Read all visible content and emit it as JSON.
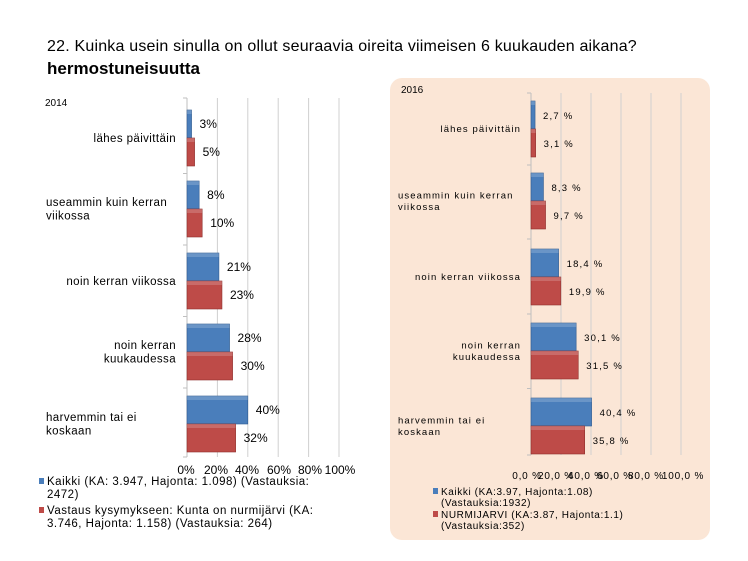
{
  "title": "22. Kuinka usein sinulla on ollut seuraavia oireita viimeisen 6 kuukauden aikana?",
  "subtitle": "hermostuneisuutta",
  "colors": {
    "series1": "#4a7ebb",
    "series2": "#be4b48",
    "panel": "#fbe6d6",
    "grid": "#d0d0d0"
  },
  "chart_data": [
    {
      "type": "bar",
      "orientation": "horizontal",
      "title": "2014",
      "categories": [
        "lähes päivittäin",
        "useammin kuin kerran viikossa",
        "noin kerran viikossa",
        "noin kerran kuukaudessa",
        "harvemmin tai ei koskaan"
      ],
      "category_lines": [
        [
          "lähes päivittäin"
        ],
        [
          "useammin kuin kerran",
          "viikossa"
        ],
        [
          "noin kerran viikossa"
        ],
        [
          "noin kerran",
          "kuukaudessa"
        ],
        [
          "harvemmin tai ei",
          "koskaan"
        ]
      ],
      "series": [
        {
          "name": "Kaikki (KA: 3.947, Hajonta: 1.098) (Vastauksia: 2472)",
          "legend_lines": [
            "Kaikki (KA: 3.947, Hajonta: 1.098) (Vastauksia:",
            "2472)"
          ],
          "values": [
            3,
            8,
            21,
            28,
            40
          ],
          "labels": [
            "3%",
            "8%",
            "21%",
            "28%",
            "40%"
          ]
        },
        {
          "name": "Vastaus kysymykseen: Kunta on nurmijärvi (KA: 3.746, Hajonta: 1.158) (Vastauksia: 264)",
          "legend_lines": [
            "Vastaus kysymykseen: Kunta on nurmijärvi (KA:",
            "3.746, Hajonta: 1.158) (Vastauksia: 264)"
          ],
          "values": [
            5,
            10,
            23,
            30,
            32
          ],
          "labels": [
            "5%",
            "10%",
            "23%",
            "30%",
            "32%"
          ]
        }
      ],
      "xlim": [
        0,
        100
      ],
      "xticks": [
        0,
        20,
        40,
        60,
        80,
        100
      ],
      "xtick_labels": [
        "0%",
        "20%",
        "40%",
        "60%",
        "80%",
        "100%"
      ],
      "grid": true,
      "legend": "bottom"
    },
    {
      "type": "bar",
      "orientation": "horizontal",
      "title": "2016",
      "categories": [
        "lähes päivittäin",
        "useammin kuin kerran viikossa",
        "noin kerran viikossa",
        "noin kerran kuukaudessa",
        "harvemmin tai ei koskaan"
      ],
      "category_lines": [
        [
          "lähes päivittäin"
        ],
        [
          "useammin kuin kerran",
          "viikossa"
        ],
        [
          "noin kerran viikossa"
        ],
        [
          "noin kerran",
          "kuukaudessa"
        ],
        [
          "harvemmin tai ei",
          "koskaan"
        ]
      ],
      "series": [
        {
          "name": "Kaikki (KA:3.97, Hajonta:1.08) (Vastauksia:1932)",
          "legend_lines": [
            "Kaikki (KA:3.97, Hajonta:1.08)",
            "(Vastauksia:1932)"
          ],
          "values": [
            2.7,
            8.3,
            18.4,
            30.1,
            40.4
          ],
          "labels": [
            "2,7 %",
            "8,3 %",
            "18,4 %",
            "30,1 %",
            "40,4 %"
          ]
        },
        {
          "name": "NURMIJARVI (KA:3.87, Hajonta:1.1) (Vastauksia:352)",
          "legend_lines": [
            "NURMIJARVI (KA:3.87, Hajonta:1.1)",
            "(Vastauksia:352)"
          ],
          "values": [
            3.1,
            9.7,
            19.9,
            31.5,
            35.8
          ],
          "labels": [
            "3,1 %",
            "9,7 %",
            "19,9 %",
            "31,5 %",
            "35,8 %"
          ]
        }
      ],
      "xlim": [
        0,
        100
      ],
      "xticks": [
        0,
        20,
        40,
        60,
        80,
        100
      ],
      "xtick_labels": [
        "0,0 %",
        "20,0 %",
        "40,0 %",
        "60,0 %",
        "80,0 %",
        "100,0 %"
      ],
      "grid": true,
      "legend": "bottom"
    }
  ]
}
